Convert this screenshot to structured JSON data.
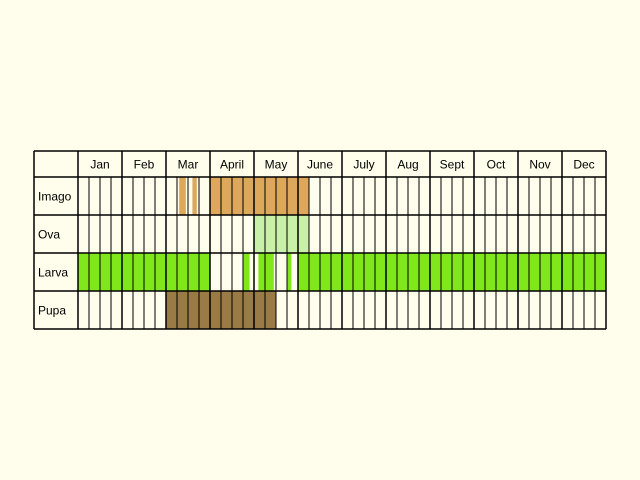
{
  "colors": {
    "background": "#fffdec",
    "cell": "#fffdec",
    "grid": "#000000",
    "imago": "#dda85c",
    "ova": "#c8f0a8",
    "larva": "#80e81a",
    "pupa": "#9a7b45"
  },
  "calendar": {
    "months": [
      "Jan",
      "Feb",
      "Mar",
      "April",
      "May",
      "June",
      "July",
      "Aug",
      "Sept",
      "Oct",
      "Nov",
      "Dec"
    ],
    "subdivisions_per_month": 4,
    "stages": [
      {
        "label": "Imago",
        "color": "imago",
        "periods": [
          {
            "start": 2.3,
            "end": 2.45
          },
          {
            "start": 2.6,
            "end": 2.7
          },
          {
            "start": 3.0,
            "end": 5.25
          }
        ]
      },
      {
        "label": "Ova",
        "color": "ova",
        "periods": [
          {
            "start": 4.0,
            "end": 5.25
          }
        ]
      },
      {
        "label": "Larva",
        "color": "larva",
        "periods": [
          {
            "start": 0.0,
            "end": 3.0
          },
          {
            "start": 3.75,
            "end": 3.9
          },
          {
            "start": 4.1,
            "end": 4.45
          },
          {
            "start": 4.75,
            "end": 4.85
          },
          {
            "start": 5.0,
            "end": 12.0
          }
        ]
      },
      {
        "label": "Pupa",
        "color": "pupa",
        "periods": [
          {
            "start": 2.0,
            "end": 4.5
          }
        ]
      }
    ]
  }
}
